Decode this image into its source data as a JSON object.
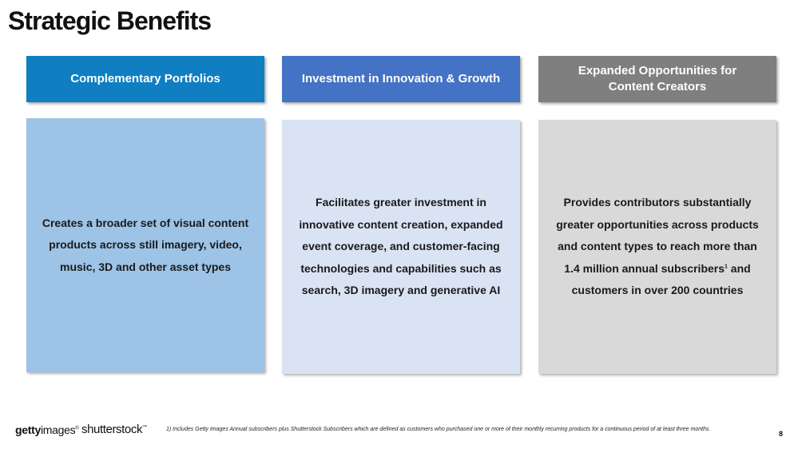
{
  "slide": {
    "title": "Strategic Benefits",
    "page_number": "8"
  },
  "columns": [
    {
      "header": "Complementary Portfolios",
      "body": "Creates a broader set of visual content products across still imagery, video, music, 3D and other asset types"
    },
    {
      "header": "Investment in Innovation & Growth",
      "body": "Facilitates greater investment in innovative content creation, expanded event coverage, and customer-facing technologies and capabilities such as search, 3D imagery and generative AI"
    },
    {
      "header": "Expanded Opportunities for Content Creators",
      "body_before_sup": "Provides contributors substantially greater opportunities across products and content types to reach more than 1.4 million annual subscribers",
      "body_sup": "1",
      "body_after_sup": " and customers in over 200 countries"
    }
  ],
  "colors": {
    "header_1": "#0f7fc1",
    "header_2": "#4472c4",
    "header_3": "#7f7f7f",
    "body_1": "#9dc3e6",
    "body_2": "#dae3f3",
    "body_3": "#d9d9d9"
  },
  "footer": {
    "logo_getty_bold": "getty",
    "logo_getty_light": "images",
    "logo_getty_mark": "®",
    "logo_shutterstock": "shutterstock",
    "logo_shutterstock_mark": "™",
    "footnote": "1) Includes Getty Images Annual subscribers plus Shutterstock Subscribers which are defined as customers who purchased one or more of their monthly recurring products for a continuous period of at least three months."
  }
}
